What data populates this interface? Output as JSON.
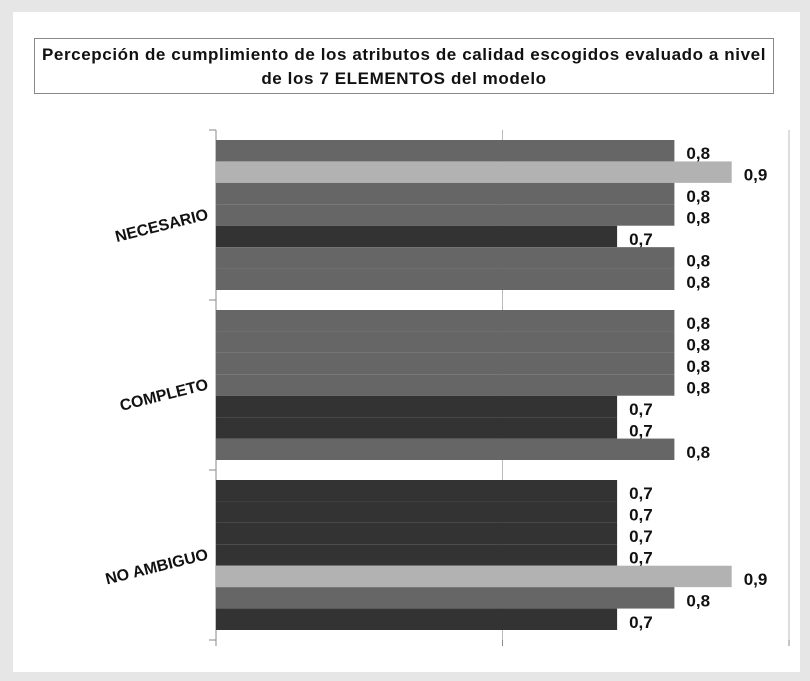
{
  "chart_data": {
    "type": "hbar",
    "title": "Percepción de cumplimiento de los atributos de calidad escogidos evaluado a nivel de los 7 ELEMENTOS del modelo",
    "categories": [
      "NECESARIO",
      "COMPLETO",
      "NO AMBIGUO"
    ],
    "series": [
      {
        "values": [
          0.8,
          0.8,
          0.7
        ],
        "value_labels": [
          "0,8",
          "0,8",
          "0,7"
        ],
        "colors": [
          "#666666",
          "#666666",
          "#333333"
        ]
      },
      {
        "values": [
          0.9,
          0.8,
          0.7
        ],
        "value_labels": [
          "0,9",
          "0,8",
          "0,7"
        ],
        "colors": [
          "#b2b2b2",
          "#666666",
          "#333333"
        ]
      },
      {
        "values": [
          0.8,
          0.8,
          0.7
        ],
        "value_labels": [
          "0,8",
          "0,8",
          "0,7"
        ],
        "colors": [
          "#666666",
          "#666666",
          "#333333"
        ]
      },
      {
        "values": [
          0.8,
          0.8,
          0.7
        ],
        "value_labels": [
          "0,8",
          "0,8",
          "0,7"
        ],
        "colors": [
          "#666666",
          "#666666",
          "#333333"
        ]
      },
      {
        "values": [
          0.7,
          0.7,
          0.9
        ],
        "value_labels": [
          "0,7",
          "0,7",
          "0,9"
        ],
        "colors": [
          "#333333",
          "#333333",
          "#b2b2b2"
        ]
      },
      {
        "values": [
          0.8,
          0.7,
          0.8
        ],
        "value_labels": [
          "0,8",
          "0,7",
          "0,8"
        ],
        "colors": [
          "#666666",
          "#333333",
          "#666666"
        ]
      },
      {
        "values": [
          0.8,
          0.8,
          0.7
        ],
        "value_labels": [
          "0,8",
          "0,8",
          "0,7"
        ],
        "colors": [
          "#666666",
          "#666666",
          "#333333"
        ]
      }
    ],
    "xlim": [
      0,
      1
    ],
    "xticks": [
      0,
      0.5,
      1
    ],
    "grid": true
  }
}
